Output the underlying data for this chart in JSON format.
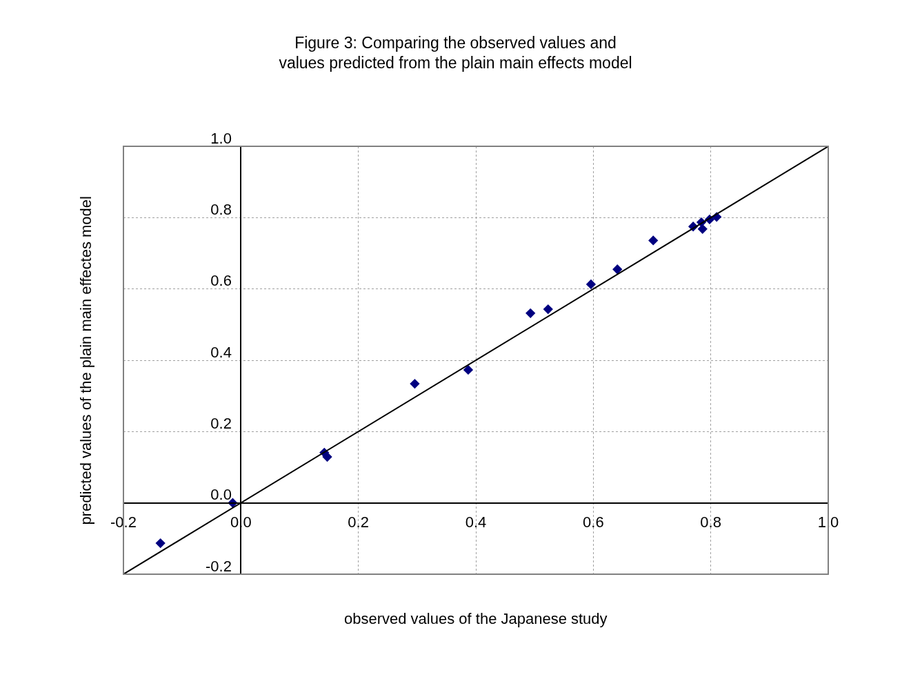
{
  "chart_data": {
    "type": "scatter",
    "title": "Figure 3: Comparing the observed values and\nvalues predicted from the plain main effects model",
    "xlabel": "observed values of the Japanese study",
    "ylabel": "predicted values of the plain main effectes model",
    "series": [
      {
        "color": "#000080",
        "marker": "diamond",
        "x": [
          -0.137,
          -0.014,
          0.142,
          0.147,
          0.296,
          0.387,
          0.493,
          0.523,
          0.596,
          0.641,
          0.702,
          0.77,
          0.784,
          0.786,
          0.798,
          0.81
        ],
        "values": [
          -0.113,
          0.0,
          0.141,
          0.129,
          0.334,
          0.373,
          0.532,
          0.543,
          0.613,
          0.655,
          0.736,
          0.775,
          0.787,
          0.768,
          0.795,
          0.802
        ]
      },
      {
        "type": "line",
        "color": "#000000",
        "marker": "none",
        "line_style": "solid",
        "x": [
          -0.2,
          1.0
        ],
        "values": [
          -0.2,
          1.0
        ]
      }
    ],
    "xlim": [
      -0.2,
      1.0
    ],
    "ylim": [
      -0.2,
      1.0
    ],
    "xticks": [
      -0.2,
      {
        "value": 0,
        "label": "0.0"
      },
      0.2,
      0.4,
      0.6,
      0.8,
      {
        "value": 1,
        "label": "1.0"
      }
    ],
    "yticks": [
      -0.2,
      {
        "value": 0,
        "label": "0.0"
      },
      0.2,
      0.4,
      0.6,
      0.8,
      {
        "value": 1,
        "label": "1.0"
      }
    ],
    "grid": true,
    "legend": false
  }
}
